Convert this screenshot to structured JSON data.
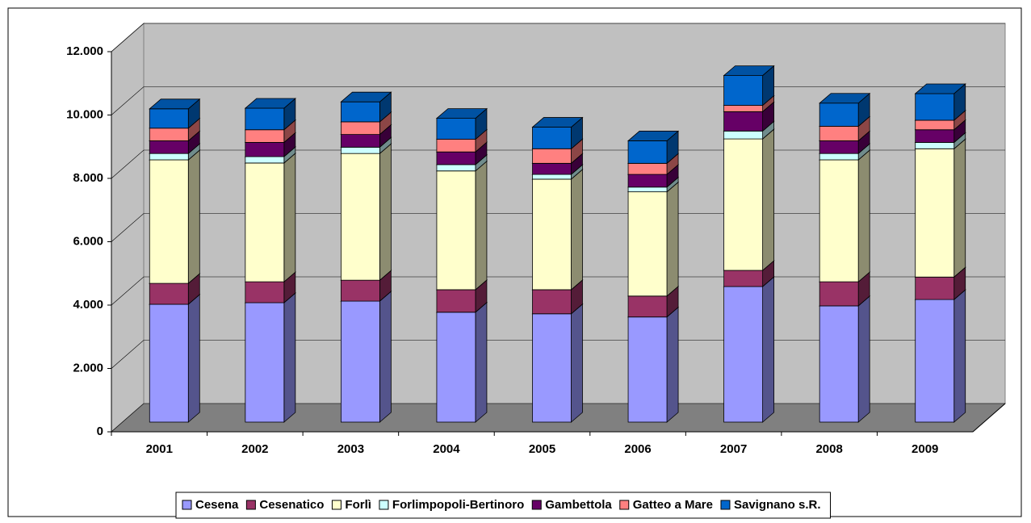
{
  "chart_data": {
    "type": "bar3d_stacked",
    "categories": [
      "2001",
      "2002",
      "2003",
      "2004",
      "2005",
      "2006",
      "2007",
      "2008",
      "2009"
    ],
    "series": [
      {
        "name": "Cesena",
        "color": "#9999ff",
        "values": [
          3720,
          3770,
          3820,
          3470,
          3420,
          3320,
          4280,
          3670,
          3870
        ]
      },
      {
        "name": "Cesenatico",
        "color": "#993366",
        "values": [
          660,
          660,
          660,
          710,
          760,
          660,
          510,
          760,
          710
        ]
      },
      {
        "name": "Forlì",
        "color": "#ffffcc",
        "values": [
          3900,
          3750,
          4000,
          3750,
          3490,
          3290,
          4150,
          3850,
          4050
        ]
      },
      {
        "name": "Forlimpopoli-Bertinoro",
        "color": "#ccffff",
        "values": [
          200,
          200,
          200,
          200,
          150,
          150,
          250,
          200,
          200
        ]
      },
      {
        "name": "Gambettola",
        "color": "#660066",
        "values": [
          400,
          450,
          400,
          400,
          350,
          400,
          610,
          400,
          400
        ]
      },
      {
        "name": "Gatteo a Mare",
        "color": "#ff8080",
        "values": [
          400,
          400,
          400,
          400,
          460,
          350,
          200,
          460,
          300
        ]
      },
      {
        "name": "Savignano s.R.",
        "color": "#0066cc",
        "values": [
          610,
          680,
          630,
          660,
          680,
          710,
          940,
          730,
          840
        ]
      }
    ],
    "ylim": [
      0,
      12000
    ],
    "yticks": [
      0,
      {
        "value": 2000,
        "label": "2.000"
      },
      {
        "value": 4000,
        "label": "4.000"
      },
      {
        "value": 6000,
        "label": "6.000"
      },
      {
        "value": 8000,
        "label": "8.000"
      },
      {
        "value": 10000,
        "label": "10.000"
      },
      {
        "value": 12000,
        "label": "12.000"
      }
    ],
    "grid": true,
    "legend": "bottom"
  }
}
